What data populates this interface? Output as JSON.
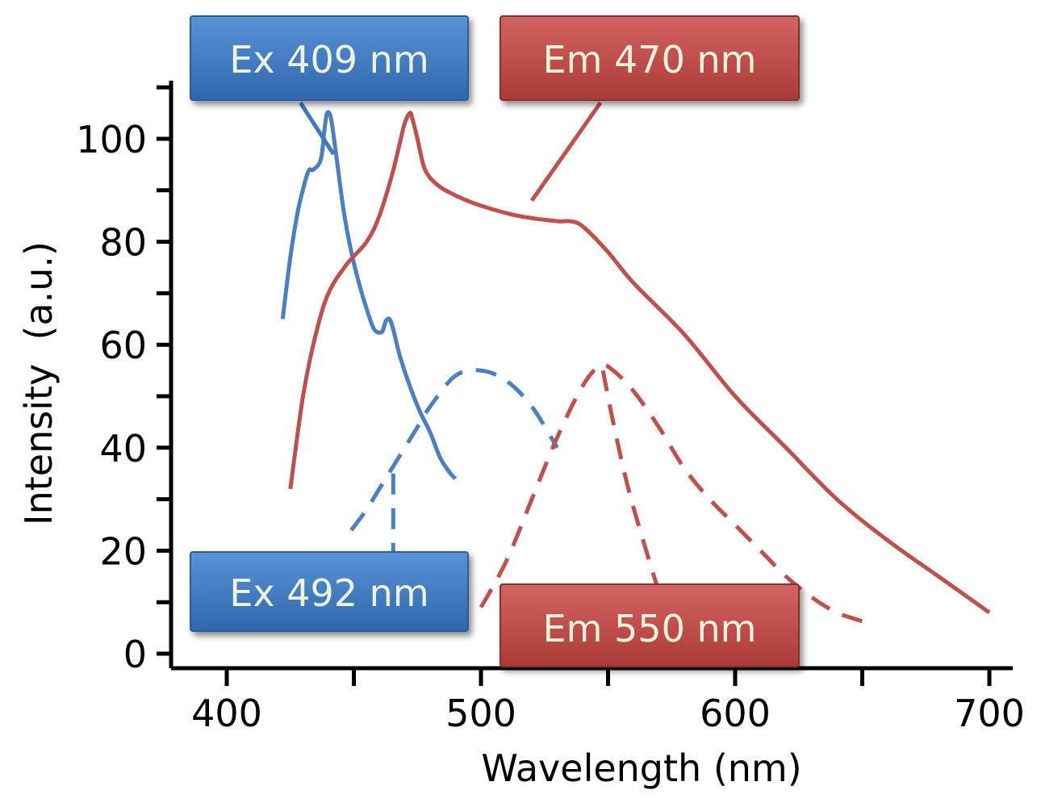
{
  "chart_data": {
    "type": "line",
    "title": "",
    "xlabel": "Wavelength (nm)",
    "ylabel": "Intensity  (a.u.)",
    "xlim": [
      378,
      710
    ],
    "ylim": [
      0,
      110
    ],
    "x_major_ticks": [
      400,
      500,
      600,
      700
    ],
    "x_minor_ticks": [
      450,
      550,
      650
    ],
    "y_major_ticks": [
      0,
      20,
      40,
      60,
      80,
      100
    ],
    "y_minor_ticks": [
      10,
      30,
      50,
      70,
      90,
      110
    ],
    "grid": false,
    "colors": {
      "excitation": "#4a7fc1",
      "emission": "#c0504d",
      "axis": "#000000"
    },
    "series": [
      {
        "name": "Ex 409 nm",
        "style": "solid",
        "color": "#4a7fc1",
        "x": [
          422,
          425,
          428,
          431,
          432.5,
          434,
          437,
          438.5,
          439.5,
          441,
          443,
          446,
          449,
          452,
          455,
          458,
          461,
          462.5,
          464,
          465.5,
          468,
          472,
          476,
          480,
          484,
          488,
          490
        ],
        "y": [
          65,
          77,
          86,
          92,
          94,
          94,
          96,
          102,
          105,
          104,
          97,
          86,
          78,
          72,
          67,
          63,
          62.5,
          64.5,
          65,
          63,
          58,
          52,
          47,
          43,
          38,
          35,
          34
        ]
      },
      {
        "name": "Em 470 nm",
        "style": "solid",
        "color": "#c0504d",
        "x": [
          425,
          430,
          435,
          440,
          447,
          455,
          460,
          465,
          468,
          470,
          472,
          473,
          475,
          478,
          483,
          490,
          500,
          515,
          530,
          535,
          540,
          550,
          560,
          580,
          600,
          620,
          640,
          660,
          680,
          700
        ],
        "y": [
          32,
          50,
          62,
          70,
          75.5,
          80,
          85,
          93,
          99,
          103,
          105,
          104,
          100,
          94,
          91,
          89,
          87,
          85,
          84,
          84,
          83,
          78,
          72,
          62,
          50,
          40,
          30,
          22,
          15,
          8
        ]
      },
      {
        "name": "Ex 492 nm",
        "style": "dashed",
        "color": "#4a7fc1",
        "x": [
          449,
          455,
          460,
          465,
          470,
          475,
          480,
          490,
          500,
          510,
          520,
          530
        ],
        "y": [
          24,
          28,
          32,
          36,
          40,
          44,
          48,
          54,
          55,
          53,
          48,
          40
        ]
      },
      {
        "name": "Em 550 nm",
        "style": "dashed",
        "color": "#c0504d",
        "x": [
          500,
          510,
          520,
          530,
          540,
          547,
          552,
          560,
          570,
          580,
          590,
          600,
          610,
          620,
          630,
          640,
          652
        ],
        "y": [
          9,
          18,
          30,
          42,
          52,
          56,
          55,
          51,
          44,
          36,
          30,
          25,
          20,
          15,
          11,
          8,
          6
        ]
      },
      {
        "name": "Ex 492 nm (guide)",
        "style": "dashed",
        "color": "#4a7fc1",
        "x": [
          465.5,
          465.5
        ],
        "y": [
          35,
          13
        ]
      },
      {
        "name": "Em 550 nm (guide)",
        "style": "dashed",
        "color": "#c0504d",
        "x": [
          548,
          552,
          558,
          565,
          570
        ],
        "y": [
          55,
          45,
          32,
          20,
          12
        ]
      }
    ],
    "callouts": [
      {
        "label": "Ex 409 nm",
        "color": "#3e79c2",
        "leader_x": [
          429,
          442
        ],
        "leader_y": [
          107,
          97
        ]
      },
      {
        "label": "Em 470 nm",
        "color": "#c0504d",
        "leader_x": [
          547,
          520
        ],
        "leader_y": [
          107,
          88
        ]
      },
      {
        "label": "Ex 492 nm",
        "color": "#3e79c2",
        "leader_x": [],
        "leader_y": []
      },
      {
        "label": "Em 550 nm",
        "color": "#c0504d",
        "leader_x": [],
        "leader_y": []
      }
    ]
  }
}
